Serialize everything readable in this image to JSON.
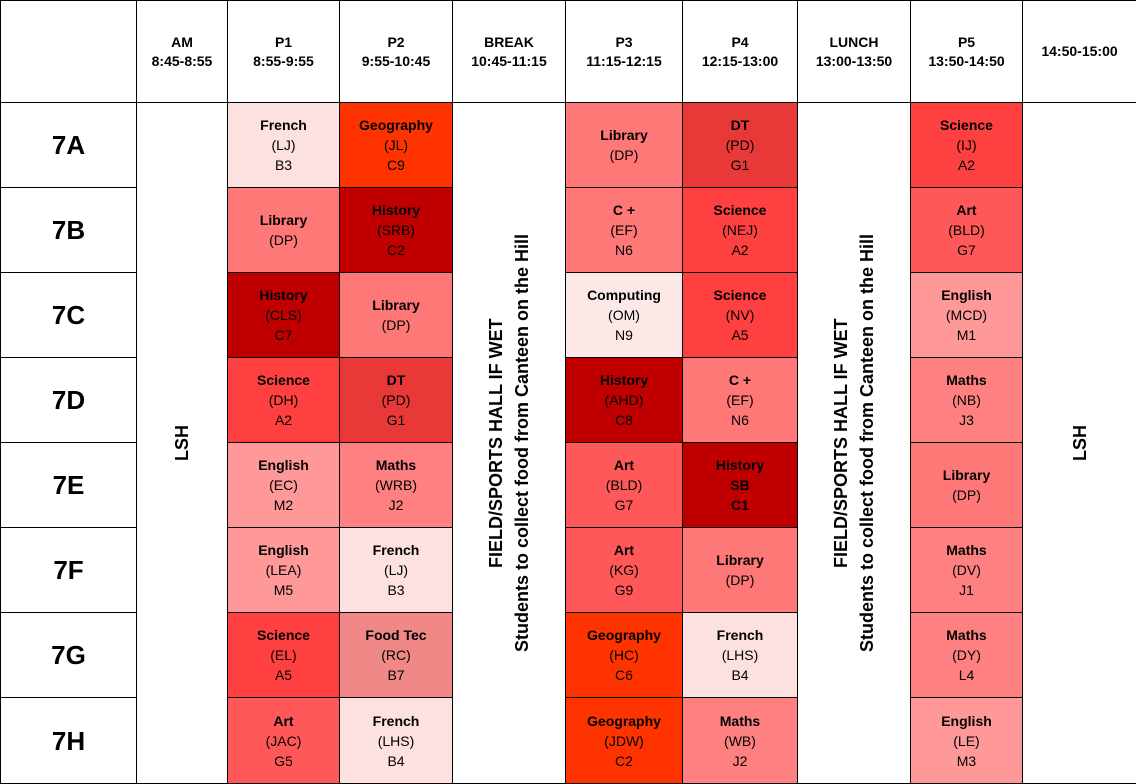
{
  "header": {
    "columns": [
      {
        "lines": []
      },
      {
        "lines": [
          "AM",
          "8:45-8:55"
        ]
      },
      {
        "lines": [
          "P1",
          "8:55-9:55"
        ]
      },
      {
        "lines": [
          "P2",
          "9:55-10:45"
        ]
      },
      {
        "lines": [
          "BREAK",
          "10:45-11:15"
        ]
      },
      {
        "lines": [
          "P3",
          "11:15-12:15"
        ]
      },
      {
        "lines": [
          "P4",
          "12:15-13:00"
        ]
      },
      {
        "lines": [
          "LUNCH",
          "13:00-13:50"
        ]
      },
      {
        "lines": [
          "P5",
          "13:50-14:50"
        ]
      },
      {
        "lines": [
          "14:50-15:00"
        ]
      }
    ]
  },
  "am_column": {
    "lines": [
      "LSH"
    ]
  },
  "break_column": {
    "lines": [
      "FIELD/SPORTS HALL IF WET",
      "Students to collect food from Canteen on the Hill"
    ]
  },
  "lunch_column": {
    "lines": [
      "FIELD/SPORTS HALL IF WET",
      "Students to collect food from Canteen on the Hill"
    ]
  },
  "end_column": {
    "lines": [
      "LSH"
    ]
  },
  "rows": [
    {
      "label": "7A",
      "cells": [
        {
          "lines": [
            "French",
            "(LJ)",
            "B3"
          ],
          "color": "#fde0e0"
        },
        {
          "lines": [
            "Geography",
            "(JL)",
            "C9"
          ],
          "color": "#ff3300"
        },
        {
          "lines": [
            "Library",
            "(DP)"
          ],
          "color": "#ff7878"
        },
        {
          "lines": [
            "DT",
            "(PD)",
            "G1"
          ],
          "color": "#e83838"
        },
        {
          "lines": [
            "Science",
            "(IJ)",
            "A2"
          ],
          "color": "#ff4040"
        }
      ]
    },
    {
      "label": "7B",
      "cells": [
        {
          "lines": [
            "Library",
            "(DP)"
          ],
          "color": "#ff7878"
        },
        {
          "lines": [
            "History",
            "(SRB)",
            "C2"
          ],
          "color": "#c00000"
        },
        {
          "lines": [
            "C +",
            "(EF)",
            "N6"
          ],
          "color": "#ff7878"
        },
        {
          "lines": [
            "Science",
            "(NEJ)",
            "A2"
          ],
          "color": "#ff4040"
        },
        {
          "lines": [
            "Art",
            "(BLD)",
            "G7"
          ],
          "color": "#ff5858"
        }
      ]
    },
    {
      "label": "7C",
      "cells": [
        {
          "lines": [
            "History",
            "(CLS)",
            "C7"
          ],
          "color": "#c00000"
        },
        {
          "lines": [
            "Library",
            "(DP)"
          ],
          "color": "#ff7878"
        },
        {
          "lines": [
            "Computing",
            "(OM)",
            "N9"
          ],
          "color": "#fde8e8"
        },
        {
          "lines": [
            "Science",
            "(NV)",
            "A5"
          ],
          "color": "#ff4040"
        },
        {
          "lines": [
            "English",
            "(MCD)",
            "M1"
          ],
          "color": "#ff9898"
        }
      ]
    },
    {
      "label": "7D",
      "cells": [
        {
          "lines": [
            "Science",
            "(DH)",
            "A2"
          ],
          "color": "#ff4040"
        },
        {
          "lines": [
            "DT",
            "(PD)",
            "G1"
          ],
          "color": "#e83838"
        },
        {
          "lines": [
            "History",
            "(AHD)",
            "C8"
          ],
          "color": "#c00000"
        },
        {
          "lines": [
            "C +",
            "(EF)",
            "N6"
          ],
          "color": "#ff7878"
        },
        {
          "lines": [
            "Maths",
            "(NB)",
            "J3"
          ],
          "color": "#ff8080"
        }
      ]
    },
    {
      "label": "7E",
      "cells": [
        {
          "lines": [
            "English",
            "(EC)",
            "M2"
          ],
          "color": "#ff9898"
        },
        {
          "lines": [
            "Maths",
            "(WRB)",
            "J2"
          ],
          "color": "#ff8080"
        },
        {
          "lines": [
            "Art",
            "(BLD)",
            "G7"
          ],
          "color": "#ff5858"
        },
        {
          "lines": [
            "History",
            "SB",
            "C1"
          ],
          "color": "#c00000",
          "bold": true
        },
        {
          "lines": [
            "Library",
            "(DP)"
          ],
          "color": "#ff7878"
        }
      ]
    },
    {
      "label": "7F",
      "cells": [
        {
          "lines": [
            "English",
            "(LEA)",
            "M5"
          ],
          "color": "#ff9898"
        },
        {
          "lines": [
            "French",
            "(LJ)",
            "B3"
          ],
          "color": "#fde0e0"
        },
        {
          "lines": [
            "Art",
            "(KG)",
            "G9"
          ],
          "color": "#ff5858"
        },
        {
          "lines": [
            "Library",
            "(DP)"
          ],
          "color": "#ff7878"
        },
        {
          "lines": [
            "Maths",
            "(DV)",
            "J1"
          ],
          "color": "#ff8080"
        }
      ]
    },
    {
      "label": "7G",
      "cells": [
        {
          "lines": [
            "Science",
            "(EL)",
            "A5"
          ],
          "color": "#ff4040"
        },
        {
          "lines": [
            "Food Tec",
            "(RC)",
            "B7"
          ],
          "color": "#f08888"
        },
        {
          "lines": [
            "Geography",
            "(HC)",
            "C6"
          ],
          "color": "#ff3300"
        },
        {
          "lines": [
            "French",
            "(LHS)",
            "B4"
          ],
          "color": "#fde0e0"
        },
        {
          "lines": [
            "Maths",
            "(DY)",
            "L4"
          ],
          "color": "#ff8080"
        }
      ]
    },
    {
      "label": "7H",
      "cells": [
        {
          "lines": [
            "Art",
            "(JAC)",
            "G5"
          ],
          "color": "#ff5858"
        },
        {
          "lines": [
            "French",
            "(LHS)",
            "B4"
          ],
          "color": "#fde0e0"
        },
        {
          "lines": [
            "Geography",
            "(JDW)",
            "C2"
          ],
          "color": "#ff3300"
        },
        {
          "lines": [
            "Maths",
            "(WB)",
            "J2"
          ],
          "color": "#ff8080"
        },
        {
          "lines": [
            "English",
            "(LE)",
            "M3"
          ],
          "color": "#ff9898"
        }
      ]
    }
  ]
}
